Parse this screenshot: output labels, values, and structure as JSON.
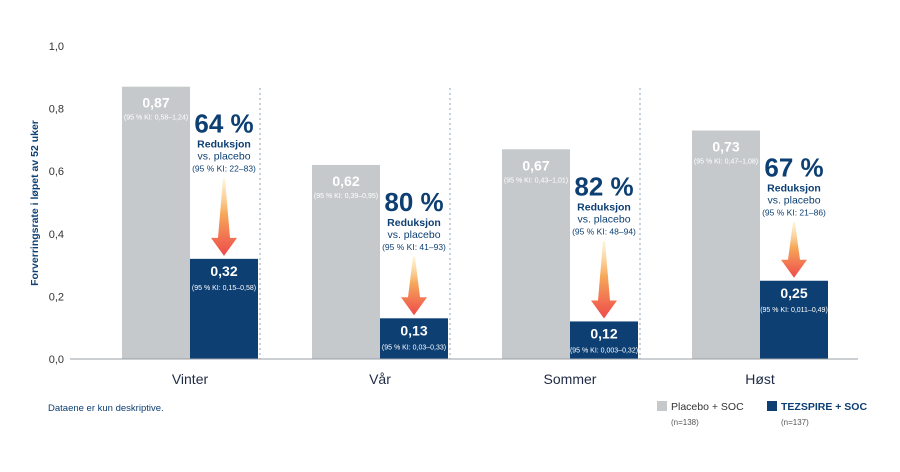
{
  "chart_data": {
    "type": "bar",
    "ylabel": "Forverringsrate i løpet av 52 uker",
    "ylim": [
      0,
      1.0
    ],
    "yticks": [
      "0,0",
      "0,2",
      "0,4",
      "0,6",
      "0,8",
      "1,0"
    ],
    "categories": [
      "Vinter",
      "Vår",
      "Sommer",
      "Høst"
    ],
    "series": [
      {
        "name": "Placebo + SOC",
        "n": "(n=138)",
        "color": "#c6c9cb",
        "values": [
          0.87,
          0.62,
          0.67,
          0.73
        ],
        "value_labels": [
          "0,87",
          "0,62",
          "0,67",
          "0,73"
        ],
        "ci_labels": [
          "(95 % KI: 0,58–1,24)",
          "(95 % KI: 0,39–0,95)",
          "(95 % KI: 0,43–1,01)",
          "(95 % KI: 0,47–1,08)"
        ]
      },
      {
        "name": "TEZSPIRE + SOC",
        "n": "(n=137)",
        "color": "#0d3f73",
        "values": [
          0.32,
          0.13,
          0.12,
          0.25
        ],
        "value_labels": [
          "0,32",
          "0,13",
          "0,12",
          "0,25"
        ],
        "ci_labels": [
          "(95 % KI: 0,15–0,58)",
          "(95 % KI: 0,03–0,33)",
          "(95 % KI: 0,003–0,32)",
          "(95 % KI: 0,011–0,49)"
        ]
      }
    ],
    "annotations": [
      {
        "percent": "64 %",
        "label": "Reduksjon",
        "vs": "vs. placebo",
        "ci": "(95 % KI: 22–83)"
      },
      {
        "percent": "80 %",
        "label": "Reduksjon",
        "vs": "vs. placebo",
        "ci": "(95 % KI: 41–93)"
      },
      {
        "percent": "82 %",
        "label": "Reduksjon",
        "vs": "vs. placebo",
        "ci": "(95 % KI: 48–94)"
      },
      {
        "percent": "67 %",
        "label": "Reduksjon",
        "vs": "vs. placebo",
        "ci": "(95 % KI: 21–86)"
      }
    ],
    "footnote": "Dataene er kun deskriptive.",
    "legend_position": "bottom-right",
    "grid": false
  }
}
